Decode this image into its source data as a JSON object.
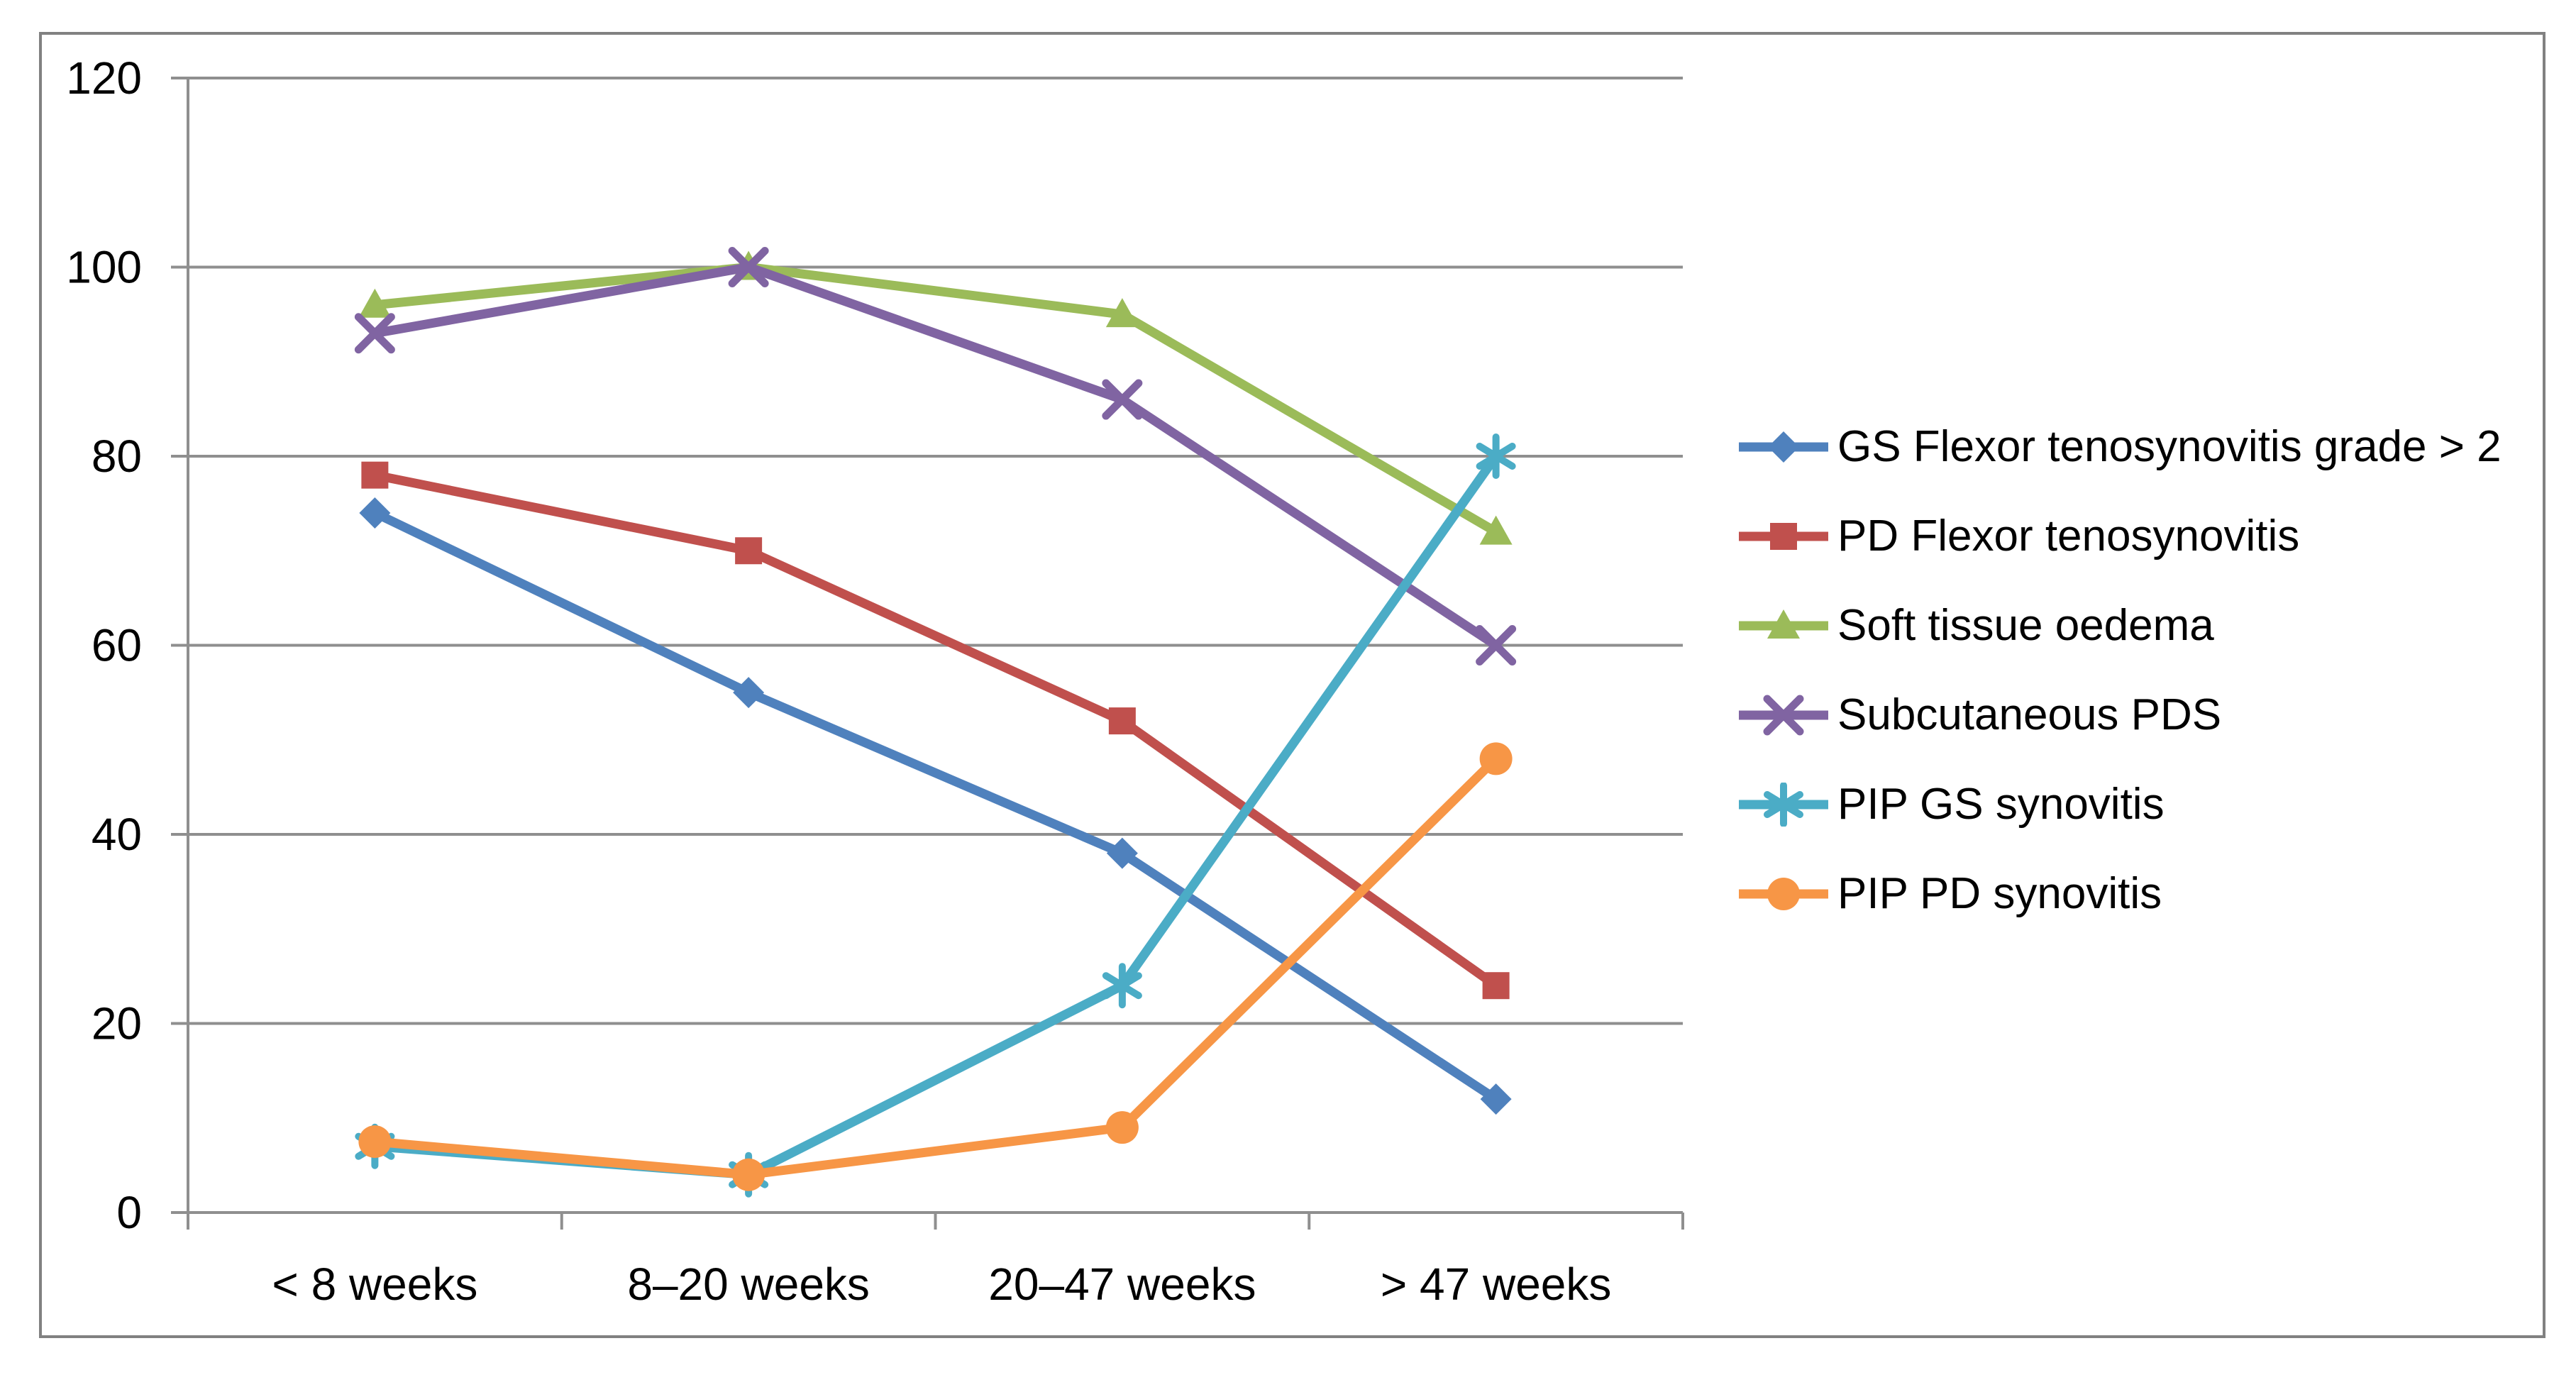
{
  "figure": {
    "background": "#FFFFFF",
    "border_color": "#818181"
  },
  "chart_data": {
    "type": "line",
    "title": "",
    "xlabel": "",
    "ylabel": "",
    "categories": [
      "< 8 weeks",
      "8–20 weeks",
      "20–47 weeks",
      "> 47 weeks"
    ],
    "series": [
      {
        "name": "GS Flexor tenosynovitis grade > 2",
        "color": "#4F81BD",
        "marker": "diamond",
        "values": [
          74,
          55,
          38,
          12
        ]
      },
      {
        "name": "PD Flexor tenosynovitis",
        "color": "#C0504D",
        "marker": "square",
        "values": [
          78,
          70,
          52,
          24
        ]
      },
      {
        "name": "Soft tissue oedema",
        "color": "#9BBB59",
        "marker": "triangle",
        "values": [
          96,
          100,
          95,
          72
        ]
      },
      {
        "name": "Subcutaneous PDS",
        "color": "#8064A2",
        "marker": "x",
        "values": [
          93,
          100,
          86,
          60
        ]
      },
      {
        "name": "PIP GS synovitis",
        "color": "#4BACC6",
        "marker": "asterisk",
        "values": [
          7,
          4,
          24,
          80
        ]
      },
      {
        "name": "PIP PD synovitis",
        "color": "#F79646",
        "marker": "circle",
        "values": [
          7.5,
          4,
          9,
          48
        ]
      }
    ],
    "ylim": [
      0,
      120
    ],
    "yticks": [
      0,
      20,
      40,
      60,
      80,
      100,
      120
    ],
    "grid": true,
    "legend_position": "right",
    "gridline_color": "#8F8F8F",
    "axis_color": "#8F8F8F",
    "text_color": "#000000"
  }
}
